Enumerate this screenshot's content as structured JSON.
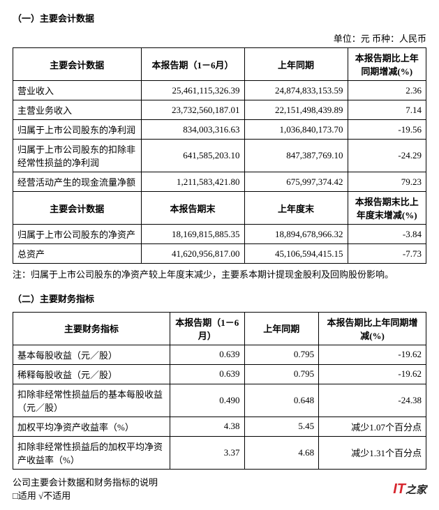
{
  "sectionA": {
    "title": "（一）主要会计数据",
    "unit": "单位：元  币种：人民币",
    "header1": {
      "c1": "主要会计数据",
      "c2": "本报告期（1－6月）",
      "c3": "上年同期",
      "c4": "本报告期比上年同期增减(%)"
    },
    "rows1": [
      {
        "label": "营业收入",
        "cur": "25,461,115,326.39",
        "prev": "24,874,833,153.59",
        "chg": "2.36"
      },
      {
        "label": "主营业务收入",
        "cur": "23,732,560,187.01",
        "prev": "22,151,498,439.89",
        "chg": "7.14"
      },
      {
        "label": "归属于上市公司股东的净利润",
        "cur": "834,003,316.63",
        "prev": "1,036,840,173.70",
        "chg": "-19.56"
      },
      {
        "label": "归属于上市公司股东的扣除非经常性损益的净利润",
        "cur": "641,585,203.10",
        "prev": "847,387,769.10",
        "chg": "-24.29"
      },
      {
        "label": "经营活动产生的现金流量净额",
        "cur": "1,211,583,421.80",
        "prev": "675,997,374.42",
        "chg": "79.23"
      }
    ],
    "header2": {
      "c1": "主要会计数据",
      "c2": "本报告期末",
      "c3": "上年度末",
      "c4": "本报告期末比上年度末增减(%)"
    },
    "rows2": [
      {
        "label": "归属于上市公司股东的净资产",
        "cur": "18,169,815,885.35",
        "prev": "18,894,678,966.32",
        "chg": "-3.84"
      },
      {
        "label": "总资产",
        "cur": "41,620,956,817.00",
        "prev": "45,106,594,415.15",
        "chg": "-7.73"
      }
    ],
    "note": "注：归属于上市公司股东的净资产较上年度末减少，主要系本期计提现金股利及回购股份影响。"
  },
  "sectionB": {
    "title": "（二）主要财务指标",
    "header": {
      "c1": "主要财务指标",
      "c2": "本报告期（1－6月）",
      "c3": "上年同期",
      "c4": "本报告期比上年同期增减(%)"
    },
    "rows": [
      {
        "label": "基本每股收益（元／股）",
        "cur": "0.639",
        "prev": "0.795",
        "chg": "-19.62"
      },
      {
        "label": "稀释每股收益（元／股）",
        "cur": "0.639",
        "prev": "0.795",
        "chg": "-19.62"
      },
      {
        "label": "扣除非经常性损益后的基本每股收益（元／股）",
        "cur": "0.490",
        "prev": "0.648",
        "chg": "-24.38"
      },
      {
        "label": "加权平均净资产收益率（%）",
        "cur": "4.38",
        "prev": "5.45",
        "chg": "减少1.07个百分点"
      },
      {
        "label": "扣除非经常性损益后的加权平均净资产收益率（%）",
        "cur": "3.37",
        "prev": "4.68",
        "chg": "减少1.31个百分点"
      }
    ],
    "explain1": "公司主要会计数据和财务指标的说明",
    "explain2": "□适用  √不适用"
  },
  "watermark": {
    "it": "IT",
    "home": "之家"
  }
}
